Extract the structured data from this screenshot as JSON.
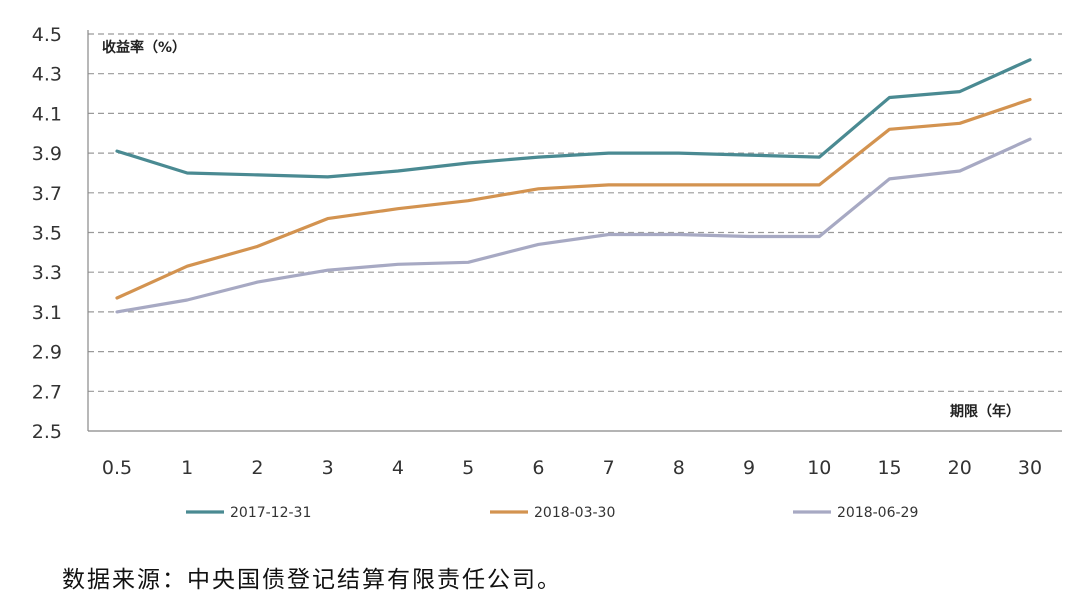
{
  "chart_data": {
    "type": "line",
    "title": "",
    "ylabel": "收益率（%）",
    "xlabel": "期限（年）",
    "categories": [
      "0.5",
      "1",
      "2",
      "3",
      "4",
      "5",
      "6",
      "7",
      "8",
      "9",
      "10",
      "15",
      "20",
      "30"
    ],
    "yticks": [
      "4.5",
      "4.3",
      "4.1",
      "3.9",
      "3.7",
      "3.5",
      "3.3",
      "3.1",
      "2.9",
      "2.7",
      "2.5"
    ],
    "ylim": [
      2.5,
      4.5
    ],
    "grid": true,
    "legend_position": "bottom",
    "series": [
      {
        "name": "2017-12-31",
        "color": "#4a8a92",
        "values": [
          3.91,
          3.8,
          3.79,
          3.78,
          3.81,
          3.85,
          3.88,
          3.9,
          3.9,
          3.89,
          3.88,
          4.18,
          4.21,
          4.37
        ]
      },
      {
        "name": "2018-03-30",
        "color": "#d39350",
        "values": [
          3.17,
          3.33,
          3.43,
          3.57,
          3.62,
          3.66,
          3.72,
          3.74,
          3.74,
          3.74,
          3.74,
          4.02,
          4.05,
          4.17
        ]
      },
      {
        "name": "2018-06-29",
        "color": "#a7a9c3",
        "values": [
          3.1,
          3.16,
          3.25,
          3.31,
          3.34,
          3.35,
          3.44,
          3.49,
          3.49,
          3.48,
          3.48,
          3.77,
          3.81,
          3.97
        ]
      }
    ]
  },
  "source_note": "数据来源：中央国债登记结算有限责任公司。"
}
